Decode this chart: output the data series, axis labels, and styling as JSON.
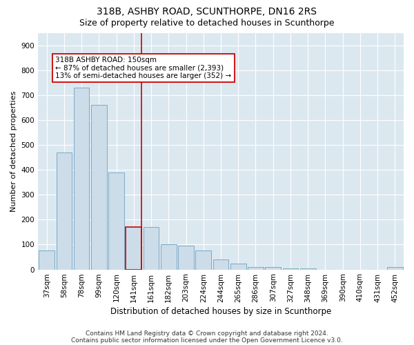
{
  "title1": "318B, ASHBY ROAD, SCUNTHORPE, DN16 2RS",
  "title2": "Size of property relative to detached houses in Scunthorpe",
  "xlabel": "Distribution of detached houses by size in Scunthorpe",
  "ylabel": "Number of detached properties",
  "categories": [
    "37sqm",
    "58sqm",
    "78sqm",
    "99sqm",
    "120sqm",
    "141sqm",
    "161sqm",
    "182sqm",
    "203sqm",
    "224sqm",
    "244sqm",
    "265sqm",
    "286sqm",
    "307sqm",
    "327sqm",
    "348sqm",
    "369sqm",
    "390sqm",
    "410sqm",
    "431sqm",
    "452sqm"
  ],
  "values": [
    75,
    470,
    730,
    660,
    390,
    170,
    170,
    100,
    95,
    75,
    40,
    25,
    10,
    10,
    5,
    5,
    0,
    0,
    0,
    0,
    10
  ],
  "bar_color": "#ccdce8",
  "bar_edge_color": "#7aaac8",
  "highlight_bar_index": 5,
  "highlight_color": "#ccdce8",
  "highlight_edge_color": "#cc0000",
  "vline_color": "#cc0000",
  "annotation_text": "318B ASHBY ROAD: 150sqm\n← 87% of detached houses are smaller (2,393)\n13% of semi-detached houses are larger (352) →",
  "annotation_box_facecolor": "#ffffff",
  "annotation_box_edgecolor": "#cc0000",
  "ylim": [
    0,
    950
  ],
  "yticks": [
    0,
    100,
    200,
    300,
    400,
    500,
    600,
    700,
    800,
    900
  ],
  "footer1": "Contains HM Land Registry data © Crown copyright and database right 2024.",
  "footer2": "Contains public sector information licensed under the Open Government Licence v3.0.",
  "bg_color": "#ffffff",
  "plot_bg_color": "#dce8f0",
  "grid_color": "#ffffff",
  "title1_fontsize": 10,
  "title2_fontsize": 9,
  "xlabel_fontsize": 8.5,
  "ylabel_fontsize": 8,
  "tick_fontsize": 7.5,
  "annotation_fontsize": 7.5,
  "footer_fontsize": 6.5
}
